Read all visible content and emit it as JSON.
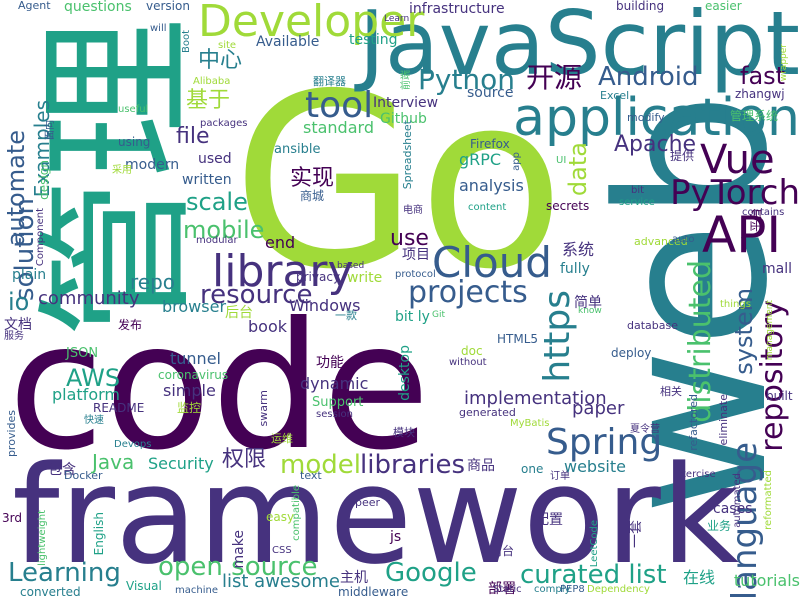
{
  "palette": [
    "#440154",
    "#46327e",
    "#365c8d",
    "#277f8e",
    "#1fa187",
    "#4ac16d",
    "#a0da39",
    "#fde725"
  ],
  "words": [
    {
      "text": "Go",
      "color": "#a0da39"
    },
    {
      "text": "code",
      "color": "#440154"
    },
    {
      "text": "web",
      "color": "#277f8e"
    },
    {
      "text": "framework",
      "color": "#46327e"
    },
    {
      "text": "JavaScript",
      "color": "#277f8e"
    },
    {
      "text": "管理",
      "color": "#1fa187"
    },
    {
      "text": "Developer",
      "color": "#a0da39"
    },
    {
      "text": "application",
      "color": "#277f8e"
    },
    {
      "text": "library",
      "color": "#46327e"
    },
    {
      "text": "API",
      "color": "#440154"
    },
    {
      "text": "Vue",
      "color": "#440154"
    },
    {
      "text": "Cloud",
      "color": "#365c8d"
    },
    {
      "text": "Spring",
      "color": "#365c8d"
    },
    {
      "text": "https",
      "color": "#277f8e"
    },
    {
      "text": "language",
      "color": "#365c8d"
    },
    {
      "text": "distributed",
      "color": "#4ac16d"
    },
    {
      "text": "repository",
      "color": "#440154"
    },
    {
      "text": "PyTorch",
      "color": "#440154"
    },
    {
      "text": "tool",
      "color": "#365c8d"
    },
    {
      "text": "Python",
      "color": "#277f8e"
    },
    {
      "text": "开源",
      "color": "#440154"
    },
    {
      "text": "Android",
      "color": "#365c8d"
    },
    {
      "text": "projects",
      "color": "#365c8d"
    },
    {
      "text": "resource",
      "color": "#46327e"
    },
    {
      "text": "open source",
      "color": "#4ac16d"
    },
    {
      "text": "curated list",
      "color": "#1fa187"
    },
    {
      "text": "Google",
      "color": "#1fa187"
    },
    {
      "text": "libraries",
      "color": "#46327e"
    },
    {
      "text": "model",
      "color": "#a0da39"
    },
    {
      "text": "Learning",
      "color": "#277f8e"
    },
    {
      "text": "system",
      "color": "#365c8d"
    },
    {
      "text": "solution",
      "color": "#365c8d"
    },
    {
      "text": "automate",
      "color": "#365c8d"
    },
    {
      "text": "AWS",
      "color": "#1fa187"
    },
    {
      "text": "mobile",
      "color": "#4ac16d"
    },
    {
      "text": "scale",
      "color": "#1fa187"
    },
    {
      "text": "fast",
      "color": "#440154"
    },
    {
      "text": "data",
      "color": "#a0da39"
    },
    {
      "text": "Apache",
      "color": "#46327e"
    },
    {
      "text": "file",
      "color": "#46327e"
    },
    {
      "text": "repo",
      "color": "#277f8e"
    },
    {
      "text": "use",
      "color": "#440154"
    },
    {
      "text": "io",
      "color": "#277f8e"
    },
    {
      "text": "Java",
      "color": "#4ac16d"
    },
    {
      "text": "权限",
      "color": "#46327e"
    },
    {
      "text": "实现",
      "color": "#440154"
    },
    {
      "text": "中心",
      "color": "#277f8e"
    },
    {
      "text": "基于",
      "color": "#a0da39"
    },
    {
      "text": "Examples",
      "color": "#277f8e"
    },
    {
      "text": "community",
      "color": "#46327e"
    },
    {
      "text": "paper",
      "color": "#46327e"
    },
    {
      "text": "implementation",
      "color": "#46327e"
    },
    {
      "text": "tutorials",
      "color": "#4ac16d"
    },
    {
      "text": "list awesome",
      "color": "#277f8e"
    },
    {
      "text": "standard",
      "color": "#4ac16d"
    },
    {
      "text": "Security",
      "color": "#1fa187"
    },
    {
      "text": "website",
      "color": "#277f8e"
    },
    {
      "text": "gRPC",
      "color": "#1fa187"
    },
    {
      "text": "analysis",
      "color": "#365c8d"
    },
    {
      "text": "platform",
      "color": "#1fa187"
    },
    {
      "text": "simple",
      "color": "#46327e"
    },
    {
      "text": "tunnel",
      "color": "#365c8d"
    },
    {
      "text": "dynamic",
      "color": "#46327e"
    },
    {
      "text": "Windows",
      "color": "#46327e"
    },
    {
      "text": "book",
      "color": "#46327e"
    },
    {
      "text": "browser",
      "color": "#277f8e"
    },
    {
      "text": "end",
      "color": "#440154"
    },
    {
      "text": "Available",
      "color": "#365c8d"
    },
    {
      "text": "testing",
      "color": "#1fa187"
    },
    {
      "text": "infrastructure",
      "color": "#46327e"
    },
    {
      "text": "questions",
      "color": "#4ac16d"
    },
    {
      "text": "version",
      "color": "#365c8d"
    },
    {
      "text": "building",
      "color": "#46327e"
    },
    {
      "text": "easier",
      "color": "#4ac16d"
    },
    {
      "text": "Agent",
      "color": "#365c8d"
    },
    {
      "text": "zhangwj",
      "color": "#46327e"
    },
    {
      "text": "Excel",
      "color": "#277f8e"
    },
    {
      "text": "modify",
      "color": "#365c8d"
    },
    {
      "text": "source",
      "color": "#365c8d"
    },
    {
      "text": "Interview",
      "color": "#46327e"
    },
    {
      "text": "Github",
      "color": "#4ac16d"
    },
    {
      "text": "项目",
      "color": "#46327e"
    },
    {
      "text": "系统",
      "color": "#46327e"
    },
    {
      "text": "商城",
      "color": "#365c8d"
    },
    {
      "text": "HTML5",
      "color": "#365c8d"
    },
    {
      "text": "bit ly",
      "color": "#1fa187"
    },
    {
      "text": "mall",
      "color": "#46327e"
    },
    {
      "text": "desktop",
      "color": "#1fa187"
    },
    {
      "text": "Support",
      "color": "#4ac16d"
    },
    {
      "text": "coronavirus",
      "color": "#4ac16d"
    },
    {
      "text": "README",
      "color": "#46327e"
    },
    {
      "text": "JSON",
      "color": "#4ac16d"
    },
    {
      "text": "modern",
      "color": "#365c8d"
    },
    {
      "text": "written",
      "color": "#365c8d"
    },
    {
      "text": "used",
      "color": "#46327e"
    },
    {
      "text": "ansible",
      "color": "#277f8e"
    },
    {
      "text": "Firefox",
      "color": "#365c8d"
    },
    {
      "text": "deploy",
      "color": "#365c8d"
    },
    {
      "text": "database",
      "color": "#46327e"
    },
    {
      "text": "advanced",
      "color": "#a0da39"
    },
    {
      "text": "fully",
      "color": "#277f8e"
    },
    {
      "text": "write",
      "color": "#a0da39"
    },
    {
      "text": "privacy",
      "color": "#46327e"
    },
    {
      "text": "后台",
      "color": "#a0da39"
    },
    {
      "text": "功能",
      "color": "#440154"
    },
    {
      "text": "一款",
      "color": "#277f8e"
    },
    {
      "text": "简单",
      "color": "#46327e"
    },
    {
      "text": "文档",
      "color": "#46327e"
    },
    {
      "text": "发布",
      "color": "#440154"
    },
    {
      "text": "在线",
      "color": "#1fa187"
    },
    {
      "text": "部署",
      "color": "#440154"
    },
    {
      "text": "主机",
      "color": "#46327e"
    },
    {
      "text": "配置",
      "color": "#46327e"
    },
    {
      "text": "商品",
      "color": "#46327e"
    },
    {
      "text": "包含",
      "color": "#46327e"
    },
    {
      "text": "一套",
      "color": "#46327e"
    },
    {
      "text": "middleware",
      "color": "#365c8d"
    },
    {
      "text": "converted",
      "color": "#277f8e"
    },
    {
      "text": "machine",
      "color": "#365c8d"
    },
    {
      "text": "Visual",
      "color": "#1fa187"
    },
    {
      "text": "plain",
      "color": "#277f8e"
    },
    {
      "text": "provides",
      "color": "#365c8d"
    },
    {
      "text": "Docker",
      "color": "#365c8d"
    },
    {
      "text": "English",
      "color": "#1fa187"
    },
    {
      "text": "3rd",
      "color": "#440154"
    },
    {
      "text": "cases",
      "color": "#46327e"
    },
    {
      "text": "Exercise",
      "color": "#46327e"
    },
    {
      "text": "one",
      "color": "#277f8e"
    },
    {
      "text": "js",
      "color": "#440154"
    },
    {
      "text": "make",
      "color": "#46327e"
    },
    {
      "text": "easy",
      "color": "#a0da39"
    },
    {
      "text": "CSS",
      "color": "#46327e"
    },
    {
      "text": "peer",
      "color": "#46327e"
    },
    {
      "text": "text",
      "color": "#365c8d"
    },
    {
      "text": "swarm",
      "color": "#46327e"
    },
    {
      "text": "session",
      "color": "#46327e"
    },
    {
      "text": "generated",
      "color": "#46327e"
    },
    {
      "text": "监控",
      "color": "#a0da39"
    },
    {
      "text": "运维",
      "color": "#a0da39"
    },
    {
      "text": "模块",
      "color": "#46327e"
    },
    {
      "text": "快速",
      "color": "#277f8e"
    },
    {
      "text": "Devops",
      "color": "#277f8e"
    },
    {
      "text": "MyBatis",
      "color": "#a0da39"
    },
    {
      "text": "LeetCode",
      "color": "#1fa187"
    },
    {
      "text": "PEP8",
      "color": "#365c8d"
    },
    {
      "text": "Static",
      "color": "#46327e"
    },
    {
      "text": "comply",
      "color": "#277f8e"
    },
    {
      "text": "Dependency",
      "color": "#a0da39"
    },
    {
      "text": "业务",
      "color": "#1fa187"
    },
    {
      "text": "前台",
      "color": "#46327e"
    },
    {
      "text": "订单",
      "color": "#46327e"
    },
    {
      "text": "built",
      "color": "#46327e"
    },
    {
      "text": "eliminate",
      "color": "#46327e"
    },
    {
      "text": "refactored",
      "color": "#365c8d"
    },
    {
      "text": "automated",
      "color": "#46327e"
    },
    {
      "text": "reformatted",
      "color": "#a0da39"
    },
    {
      "text": "things",
      "color": "#a0da39"
    },
    {
      "text": "auto",
      "color": "#365c8d"
    },
    {
      "text": "management",
      "color": "#a0da39"
    },
    {
      "text": "contains",
      "color": "#46327e"
    },
    {
      "text": "service",
      "color": "#1fa187"
    },
    {
      "text": "bit",
      "color": "#46327e"
    },
    {
      "text": "Spreadsheet",
      "color": "#277f8e"
    },
    {
      "text": "content",
      "color": "#1fa187"
    },
    {
      "text": "管理系统",
      "color": "#4ac16d"
    },
    {
      "text": "平台",
      "color": "#440154"
    },
    {
      "text": "提供",
      "color": "#46327e"
    },
    {
      "text": "翻译器",
      "color": "#277f8e"
    },
    {
      "text": "电商",
      "color": "#46327e"
    },
    {
      "text": "Alibaba",
      "color": "#a0da39"
    },
    {
      "text": "packages",
      "color": "#46327e"
    },
    {
      "text": "Boot",
      "color": "#277f8e"
    },
    {
      "text": "site",
      "color": "#a0da39"
    },
    {
      "text": "will",
      "color": "#365c8d"
    },
    {
      "text": "Learn",
      "color": "#46327e"
    },
    {
      "text": "useful",
      "color": "#4ac16d"
    },
    {
      "text": "using",
      "color": "#365c8d"
    },
    {
      "text": "design",
      "color": "#4ac16d"
    },
    {
      "text": "Component",
      "color": "#46327e"
    },
    {
      "text": "modular",
      "color": "#46327e"
    },
    {
      "text": "lightweight",
      "color": "#4ac16d"
    },
    {
      "text": "compatible",
      "color": "#4ac16d"
    },
    {
      "text": "based",
      "color": "#46327e"
    },
    {
      "text": "protocol",
      "color": "#365c8d"
    },
    {
      "text": "Git",
      "color": "#4ac16d"
    },
    {
      "text": "without",
      "color": "#46327e"
    },
    {
      "text": "doc",
      "color": "#a0da39"
    },
    {
      "text": "know",
      "color": "#4ac16d"
    },
    {
      "text": "secrets",
      "color": "#440154"
    },
    {
      "text": "wrapper",
      "color": "#a0da39"
    },
    {
      "text": "面向",
      "color": "#365c8d"
    },
    {
      "text": "服务",
      "color": "#46327e"
    },
    {
      "text": "采用",
      "color": "#a0da39"
    },
    {
      "text": "app",
      "color": "#365c8d"
    },
    {
      "text": "UI",
      "color": "#4ac16d"
    },
    {
      "text": "前端",
      "color": "#4ac16d"
    },
    {
      "text": "夏令营",
      "color": "#46327e"
    },
    {
      "text": "相关",
      "color": "#46327e"
    }
  ]
}
